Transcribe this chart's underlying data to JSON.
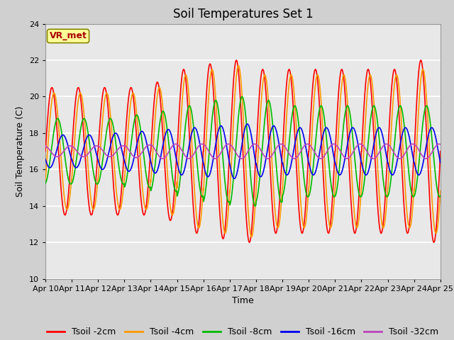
{
  "title": "Soil Temperatures Set 1",
  "xlabel": "Time",
  "ylabel": "Soil Temperature (C)",
  "annotation": "VR_met",
  "ylim": [
    10,
    24
  ],
  "yticks": [
    10,
    12,
    14,
    16,
    18,
    20,
    22,
    24
  ],
  "xtick_labels": [
    "Apr 10",
    "Apr 11",
    "Apr 12",
    "Apr 13",
    "Apr 14",
    "Apr 15",
    "Apr 16",
    "Apr 17",
    "Apr 18",
    "Apr 19",
    "Apr 20",
    "Apr 21",
    "Apr 22",
    "Apr 23",
    "Apr 24",
    "Apr 25"
  ],
  "series_colors": [
    "#ff0000",
    "#ff9900",
    "#00bb00",
    "#0000ee",
    "#bb44bb"
  ],
  "series_labels": [
    "Tsoil -2cm",
    "Tsoil -4cm",
    "Tsoil -8cm",
    "Tsoil -16cm",
    "Tsoil -32cm"
  ],
  "series_lw": [
    1.2,
    1.2,
    1.2,
    1.2,
    1.2
  ],
  "fig_bg": "#d0d0d0",
  "plot_bg": "#e8e8e8",
  "grid_color": "#ffffff",
  "n_days": 15,
  "pts_per_day": 96,
  "amplitudes_2cm": [
    3.5,
    3.5,
    3.5,
    3.5,
    3.8,
    4.5,
    4.8,
    5.0,
    4.5,
    4.5,
    4.5,
    4.5,
    4.5,
    4.5,
    5.0
  ],
  "amplitudes_4cm": [
    3.2,
    3.2,
    3.2,
    3.2,
    3.5,
    4.2,
    4.5,
    4.7,
    4.2,
    4.2,
    4.2,
    4.2,
    4.2,
    4.2,
    4.5
  ],
  "amplitudes_8cm": [
    1.8,
    1.8,
    1.8,
    2.0,
    2.2,
    2.5,
    2.8,
    3.0,
    2.8,
    2.5,
    2.5,
    2.5,
    2.5,
    2.5,
    2.5
  ],
  "amplitudes_16cm": [
    0.9,
    0.9,
    1.0,
    1.1,
    1.2,
    1.3,
    1.4,
    1.5,
    1.4,
    1.3,
    1.3,
    1.3,
    1.3,
    1.3,
    1.3
  ],
  "amplitudes_32cm": [
    0.3,
    0.3,
    0.3,
    0.35,
    0.4,
    0.4,
    0.4,
    0.4,
    0.4,
    0.4,
    0.4,
    0.4,
    0.4,
    0.4,
    0.4
  ],
  "mean_2cm": 17.0,
  "mean_4cm": 17.0,
  "mean_8cm": 17.0,
  "mean_16cm": 17.0,
  "mean_32cm": 17.0,
  "phase_2cm": 0.0,
  "phase_4cm": 0.08,
  "phase_8cm": 0.22,
  "phase_16cm": 0.42,
  "phase_32cm": 0.7,
  "title_fontsize": 12,
  "axis_label_fontsize": 9,
  "tick_fontsize": 8,
  "legend_fontsize": 9
}
